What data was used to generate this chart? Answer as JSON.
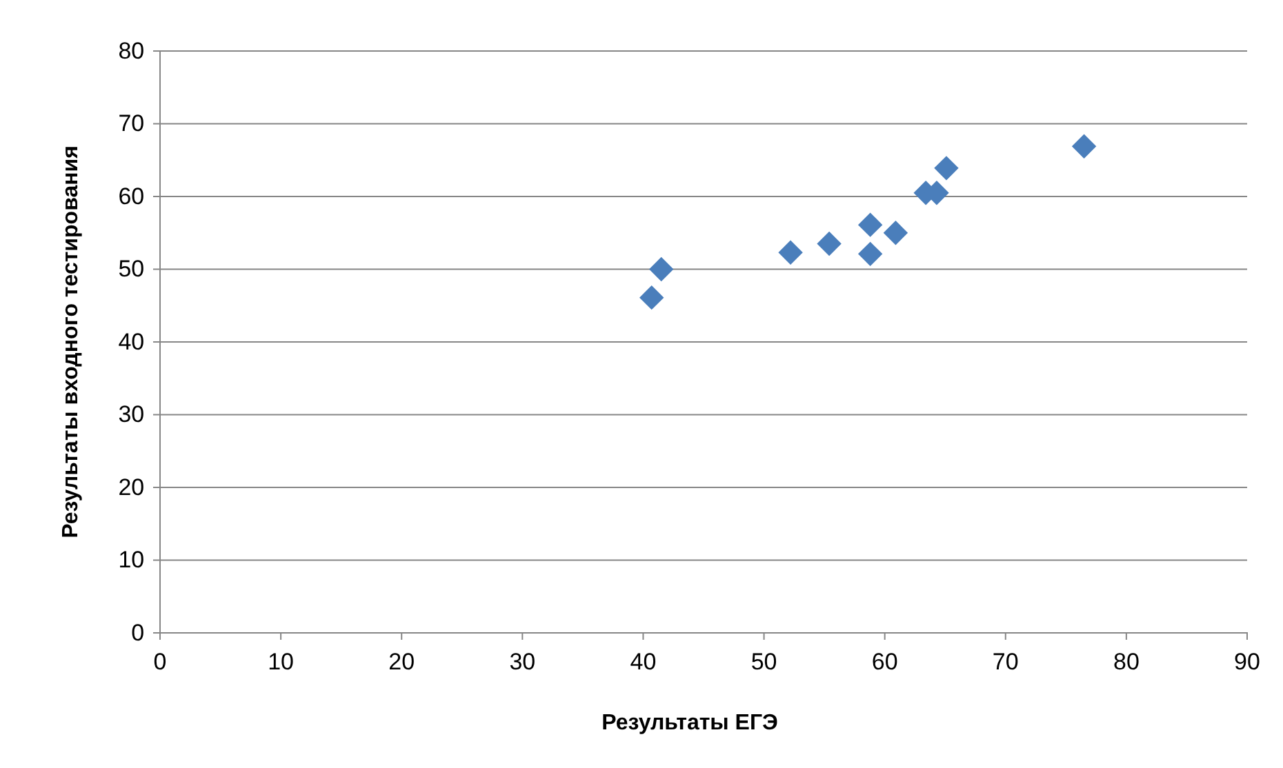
{
  "chart_data": {
    "type": "scatter",
    "xlabel": "Результаты ЕГЭ",
    "ylabel": "Результаты входного тестирования",
    "x": [
      40.7,
      41.5,
      52.2,
      55.4,
      58.8,
      58.8,
      60.9,
      63.4,
      64.3,
      65.1,
      76.5
    ],
    "series": [
      {
        "color": "#4a7ebb",
        "values": [
          46.1,
          50.0,
          52.3,
          53.5,
          56.1,
          52.1,
          55.0,
          60.5,
          60.5,
          63.9,
          66.9
        ]
      }
    ],
    "xlim": [
      0,
      90
    ],
    "xticks": [
      0,
      10,
      20,
      30,
      40,
      50,
      60,
      70,
      80,
      90
    ],
    "ylim": [
      0,
      80
    ],
    "yticks": [
      0,
      10,
      20,
      30,
      40,
      50,
      60,
      70,
      80
    ],
    "grid": "y",
    "marker": "diamond"
  }
}
